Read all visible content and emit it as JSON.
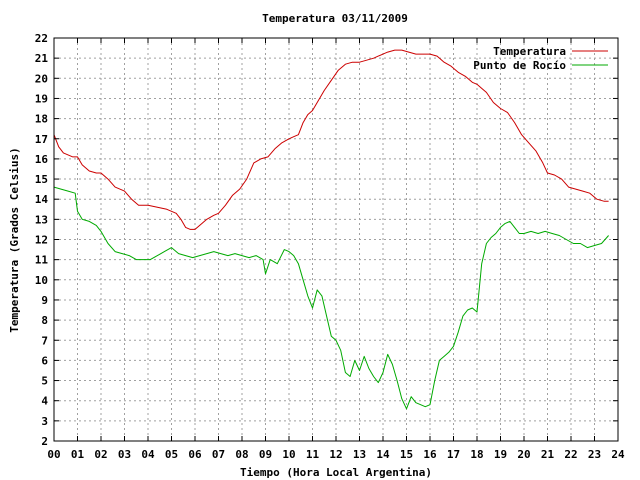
{
  "chart_data": {
    "type": "line",
    "title": "Temperatura 03/11/2009",
    "xlabel": "Tiempo (Hora Local Argentina)",
    "ylabel": "Temperatura (Grados Celsius)",
    "xlim": [
      0,
      24
    ],
    "ylim": [
      2,
      22
    ],
    "x_ticks": [
      "00",
      "01",
      "02",
      "03",
      "04",
      "05",
      "06",
      "07",
      "08",
      "09",
      "10",
      "11",
      "12",
      "13",
      "14",
      "15",
      "16",
      "17",
      "18",
      "19",
      "20",
      "21",
      "22",
      "23",
      "24"
    ],
    "y_ticks": [
      2,
      3,
      4,
      5,
      6,
      7,
      8,
      9,
      10,
      11,
      12,
      13,
      14,
      15,
      16,
      17,
      18,
      19,
      20,
      21,
      22
    ],
    "grid": true,
    "legend_position": "top-right",
    "series": [
      {
        "name": "Temperatura",
        "color": "#cc0000",
        "x": [
          0.0,
          0.2,
          0.4,
          0.6,
          0.8,
          1.0,
          1.2,
          1.5,
          1.8,
          2.0,
          2.3,
          2.6,
          3.0,
          3.3,
          3.6,
          4.0,
          4.4,
          4.8,
          5.0,
          5.2,
          5.4,
          5.6,
          5.8,
          6.0,
          6.2,
          6.5,
          6.8,
          7.0,
          7.3,
          7.6,
          7.9,
          8.2,
          8.5,
          8.8,
          9.1,
          9.4,
          9.7,
          10.0,
          10.2,
          10.4,
          10.6,
          10.8,
          11.0,
          11.2,
          11.5,
          11.8,
          12.1,
          12.4,
          12.7,
          13.0,
          13.3,
          13.6,
          13.8,
          14.0,
          14.2,
          14.5,
          14.8,
          15.1,
          15.4,
          15.7,
          16.0,
          16.3,
          16.6,
          16.9,
          17.2,
          17.5,
          17.8,
          18.0,
          18.2,
          18.4,
          18.7,
          19.0,
          19.3,
          19.6,
          19.9,
          20.2,
          20.5,
          20.8,
          21.0,
          21.3,
          21.6,
          21.9,
          22.2,
          22.5,
          22.8,
          23.1,
          23.4,
          23.6
        ],
        "values": [
          17.2,
          16.6,
          16.3,
          16.2,
          16.1,
          16.1,
          15.7,
          15.4,
          15.3,
          15.3,
          15.0,
          14.6,
          14.4,
          14.0,
          13.7,
          13.7,
          13.6,
          13.5,
          13.4,
          13.3,
          13.0,
          12.6,
          12.5,
          12.5,
          12.7,
          13.0,
          13.2,
          13.3,
          13.7,
          14.2,
          14.5,
          15.0,
          15.8,
          16.0,
          16.1,
          16.5,
          16.8,
          17.0,
          17.1,
          17.2,
          17.8,
          18.2,
          18.4,
          18.8,
          19.4,
          19.9,
          20.4,
          20.7,
          20.8,
          20.8,
          20.9,
          21.0,
          21.1,
          21.2,
          21.3,
          21.4,
          21.4,
          21.3,
          21.2,
          21.2,
          21.2,
          21.1,
          20.8,
          20.6,
          20.3,
          20.1,
          19.8,
          19.7,
          19.5,
          19.3,
          18.8,
          18.5,
          18.3,
          17.8,
          17.2,
          16.8,
          16.4,
          15.8,
          15.3,
          15.2,
          15.0,
          14.6,
          14.5,
          14.4,
          14.3,
          14.0,
          13.9,
          13.9
        ]
      },
      {
        "name": "Punto de Rocío",
        "color": "#00aa00",
        "x": [
          0.0,
          0.3,
          0.6,
          0.9,
          1.0,
          1.2,
          1.5,
          1.8,
          2.0,
          2.3,
          2.6,
          2.9,
          3.2,
          3.5,
          3.8,
          4.1,
          4.4,
          4.7,
          5.0,
          5.3,
          5.6,
          5.9,
          6.2,
          6.5,
          6.8,
          7.1,
          7.4,
          7.7,
          8.0,
          8.3,
          8.6,
          8.9,
          9.0,
          9.2,
          9.5,
          9.8,
          10.0,
          10.2,
          10.4,
          10.6,
          10.8,
          11.0,
          11.2,
          11.4,
          11.6,
          11.8,
          12.0,
          12.2,
          12.4,
          12.6,
          12.8,
          13.0,
          13.2,
          13.4,
          13.6,
          13.8,
          14.0,
          14.2,
          14.4,
          14.6,
          14.8,
          15.0,
          15.2,
          15.4,
          15.6,
          15.8,
          16.0,
          16.2,
          16.4,
          16.6,
          16.8,
          17.0,
          17.2,
          17.4,
          17.6,
          17.8,
          18.0,
          18.2,
          18.4,
          18.6,
          18.8,
          19.0,
          19.2,
          19.4,
          19.6,
          19.8,
          20.0,
          20.3,
          20.6,
          20.9,
          21.2,
          21.5,
          21.8,
          22.1,
          22.4,
          22.7,
          23.0,
          23.3,
          23.6
        ],
        "values": [
          14.6,
          14.5,
          14.4,
          14.3,
          13.4,
          13.0,
          12.9,
          12.7,
          12.4,
          11.8,
          11.4,
          11.3,
          11.2,
          11.0,
          11.0,
          11.0,
          11.2,
          11.4,
          11.6,
          11.3,
          11.2,
          11.1,
          11.2,
          11.3,
          11.4,
          11.3,
          11.2,
          11.3,
          11.2,
          11.1,
          11.2,
          11.0,
          10.3,
          11.0,
          10.8,
          11.5,
          11.4,
          11.2,
          10.8,
          10.0,
          9.2,
          8.6,
          9.5,
          9.2,
          8.2,
          7.2,
          7.0,
          6.5,
          5.4,
          5.2,
          6.0,
          5.5,
          6.2,
          5.6,
          5.2,
          4.9,
          5.4,
          6.3,
          5.8,
          5.0,
          4.1,
          3.6,
          4.2,
          3.9,
          3.8,
          3.7,
          3.8,
          5.0,
          6.0,
          6.2,
          6.4,
          6.7,
          7.4,
          8.2,
          8.5,
          8.6,
          8.4,
          10.8,
          11.8,
          12.1,
          12.3,
          12.6,
          12.8,
          12.9,
          12.6,
          12.3,
          12.3,
          12.4,
          12.3,
          12.4,
          12.3,
          12.2,
          12.0,
          11.8,
          11.8,
          11.6,
          11.7,
          11.8,
          12.2
        ]
      }
    ]
  }
}
